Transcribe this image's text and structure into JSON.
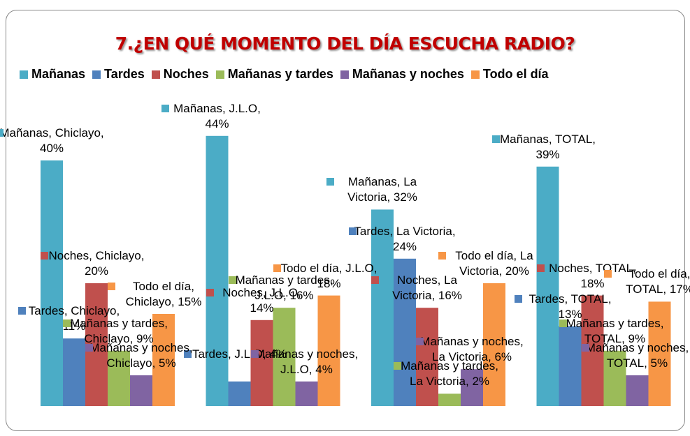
{
  "chart_data": {
    "type": "bar",
    "title": "7.¿EN QUÉ MOMENTO DEL DÍA ESCUCHA RADIO?",
    "series": [
      {
        "name": "Mañanas",
        "color": "#4bacc6",
        "values": [
          40,
          44,
          32,
          39
        ],
        "value_labels": [
          "Mañanas, Chiclayo, 40%",
          "Mañanas, J.L.O, 44%",
          "Mañanas, La Victoria, 32%",
          "Mañanas, TOTAL, 39%"
        ]
      },
      {
        "name": "Tardes",
        "color": "#4f81bd",
        "values": [
          11,
          4,
          24,
          13
        ],
        "value_labels": [
          "Tardes, Chiclayo, 11%",
          "Tardes, J.L.O, 4%",
          "Tardes, La Victoria, 24%",
          "Tardes, TOTAL, 13%"
        ]
      },
      {
        "name": "Noches",
        "color": "#c0504d",
        "values": [
          20,
          14,
          16,
          18
        ],
        "value_labels": [
          "Noches, Chiclayo, 20%",
          "Noches, J.L.O, 14%",
          "Noches, La Victoria, 16%",
          "Noches, TOTAL, 18%"
        ]
      },
      {
        "name": "Mañanas y tardes",
        "color": "#9bbb59",
        "values": [
          9,
          16,
          2,
          9
        ],
        "value_labels": [
          "Mañanas y tardes, Chiclayo, 9%",
          "Mañanas y tardes, J.L.O, 16%",
          "Mañanas y tardes, La Victoria, 2%",
          "Mañanas y tardes, TOTAL, 9%"
        ]
      },
      {
        "name": "Mañanas y noches",
        "color": "#8064a2",
        "values": [
          5,
          4,
          6,
          5
        ],
        "value_labels": [
          "Mañanas y noches, Chiclayo, 5%",
          "Mañanas y noches, J.L.O, 4%",
          "Mañanas y noches, La Victoria, 6%",
          "Mañanas y noches, TOTAL, 5%"
        ]
      },
      {
        "name": "Todo el día",
        "color": "#f79646",
        "values": [
          15,
          18,
          20,
          17
        ],
        "value_labels": [
          "Todo el día, Chiclayo, 15%",
          "Todo el día, J.L.O, 18%",
          "Todo el día, La Victoria, 20%",
          "Todo el día, TOTAL, 17%"
        ]
      }
    ]
  }
}
